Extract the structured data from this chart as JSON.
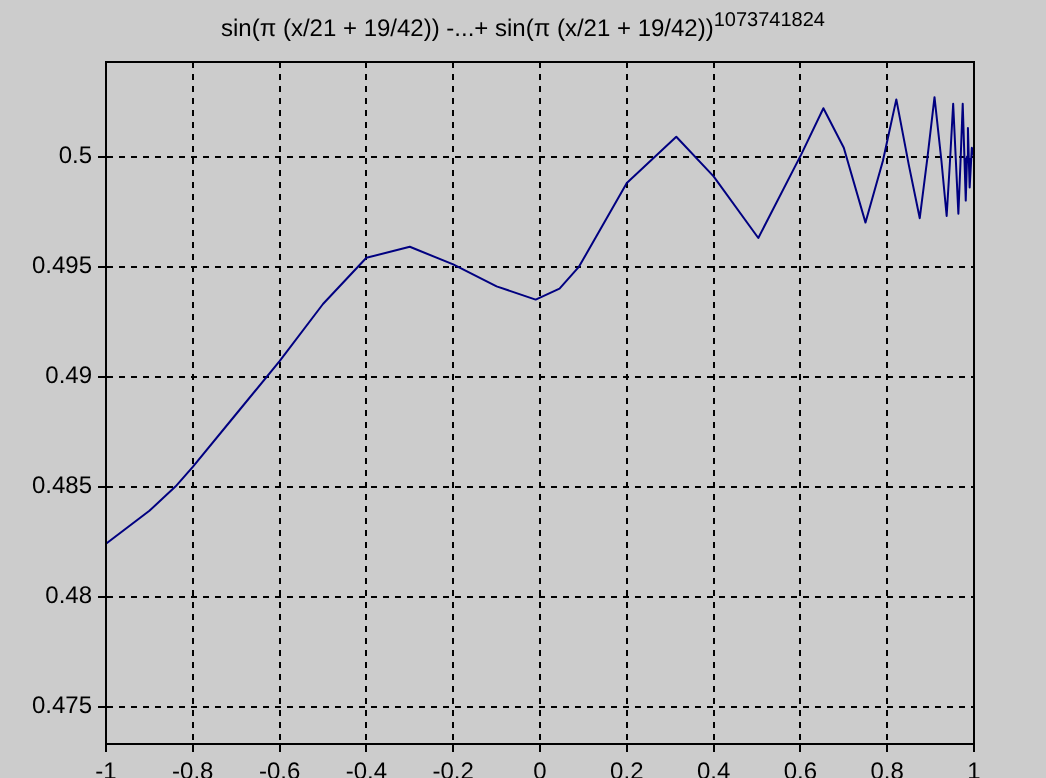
{
  "chart_data": {
    "type": "line",
    "title": "sin(π (x/21 + 19/42)) -...+ sin(π (x/21 + 19/42))$^{1073741824}$",
    "x": [
      -1,
      -0.9,
      -0.84,
      -0.8,
      -0.7,
      -0.6,
      -0.5,
      -0.4,
      -0.3,
      -0.2,
      -0.1,
      -0.01,
      0.045,
      0.09,
      0.2,
      0.314,
      0.4,
      0.503,
      0.602,
      0.653,
      0.7,
      0.75,
      0.79,
      0.821,
      0.85,
      0.875,
      0.893,
      0.909,
      0.925,
      0.937,
      0.945,
      0.952,
      0.958,
      0.964,
      0.969,
      0.974,
      0.978,
      0.981,
      0.984,
      0.986,
      0.988,
      0.99,
      0.995,
      1
    ],
    "series": [
      {
        "color": "#000080",
        "values": [
          0.4824,
          0.4839,
          0.485,
          0.4859,
          0.4883,
          0.4907,
          0.4933,
          0.4954,
          0.4959,
          0.4951,
          0.4941,
          0.4935,
          0.494,
          0.495,
          0.4988,
          0.5009,
          0.4991,
          0.4963,
          0.5001,
          0.5022,
          0.5004,
          0.497,
          0.4998,
          0.5026,
          0.4996,
          0.4972,
          0.5,
          0.5027,
          0.4998,
          0.4973,
          0.4999,
          0.5024,
          0.4999,
          0.4974,
          0.4998,
          0.5024,
          0.4999,
          0.498,
          0.5,
          0.5013,
          0.4999,
          0.4986,
          0.5004,
          0.5
        ]
      }
    ],
    "xlim": [
      -1,
      1
    ],
    "xticks": [
      -1,
      -0.8,
      -0.6,
      -0.4,
      -0.2,
      0,
      0.2,
      0.4,
      0.6,
      0.8,
      1
    ],
    "ylim": [
      0.4733,
      0.5043
    ],
    "yticks": [
      0.475,
      0.48,
      0.485,
      0.49,
      0.495,
      0.5
    ],
    "grid": true,
    "legend": false,
    "marker": "none",
    "line_style": "solid"
  }
}
